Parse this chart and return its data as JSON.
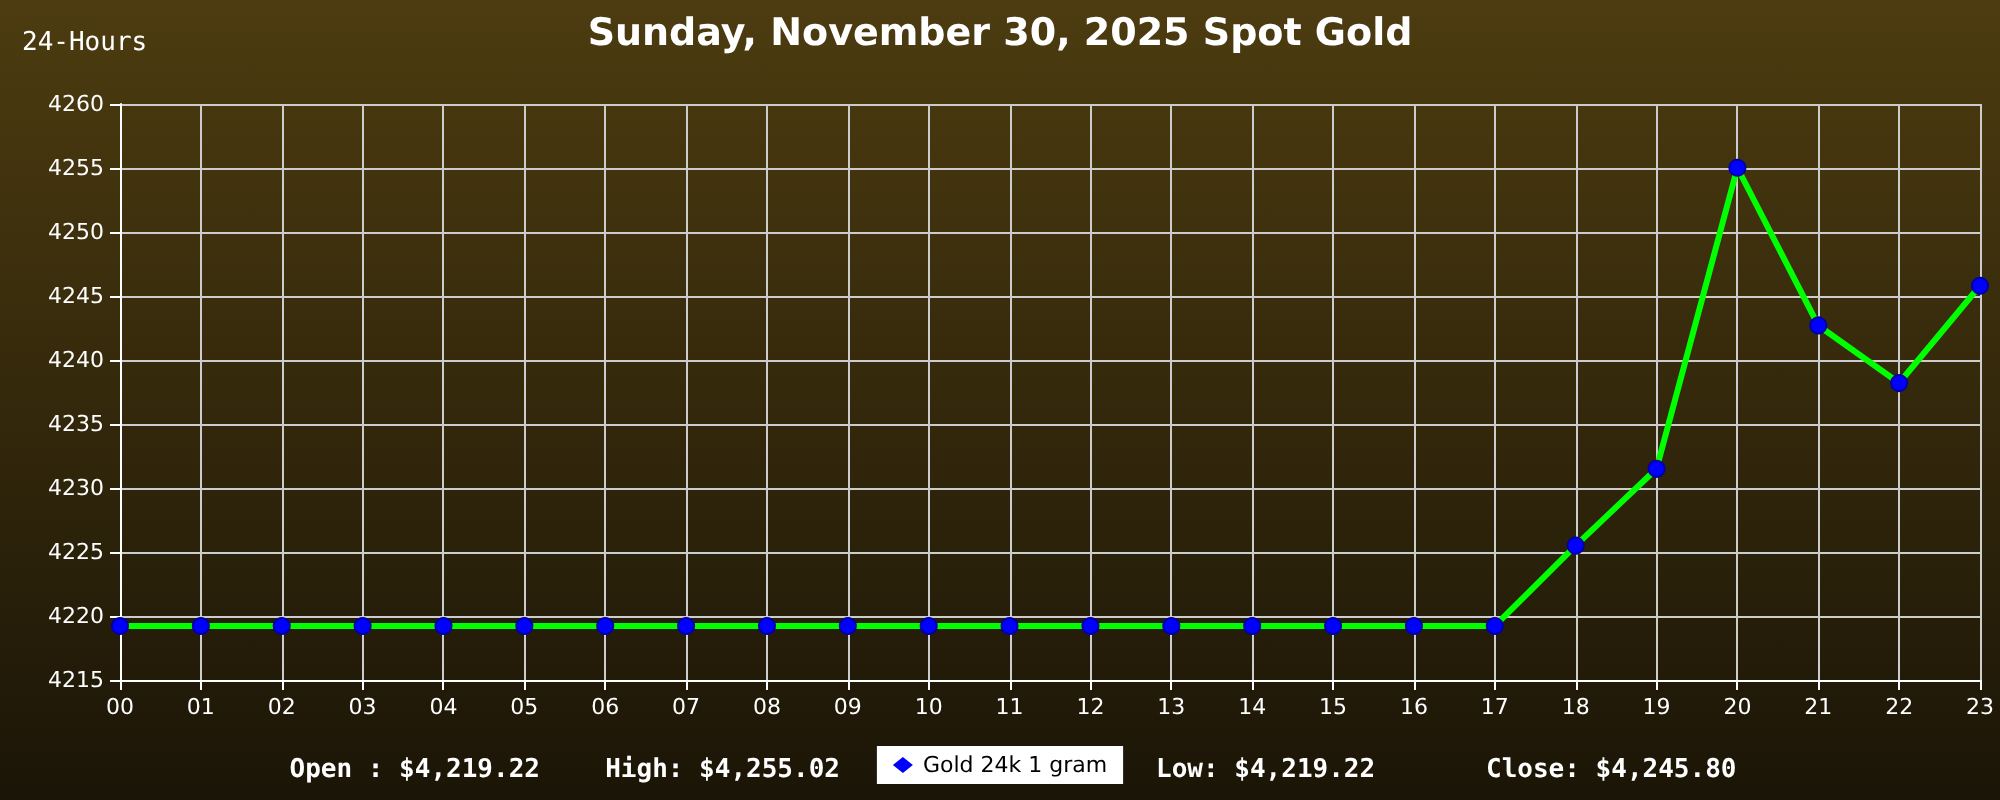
{
  "chart_data": {
    "type": "line",
    "title": "Sunday, November 30, 2025 Spot Gold",
    "subtitle": "24-Hours",
    "categories": [
      "00",
      "01",
      "02",
      "03",
      "04",
      "05",
      "06",
      "07",
      "08",
      "09",
      "10",
      "11",
      "12",
      "13",
      "14",
      "15",
      "16",
      "17",
      "18",
      "19",
      "20",
      "21",
      "22",
      "23"
    ],
    "series": [
      {
        "name": "Gold 24k 1 gram",
        "color": "#00ff00",
        "colors": [
          "#0000ff",
          "#0000ff",
          "#0000ff",
          "#0000ff",
          "#0000ff",
          "#0000ff",
          "#0000ff",
          "#0000ff",
          "#0000ff",
          "#0000ff",
          "#0000ff",
          "#0000ff",
          "#0000ff",
          "#0000ff",
          "#0000ff",
          "#0000ff",
          "#0000ff",
          "#0000ff",
          "#0000ff",
          "#0000ff",
          "#0000ff",
          "#0000ff",
          "#0000ff",
          "#0000ff"
        ],
        "values": [
          4219.22,
          4219.22,
          4219.22,
          4219.22,
          4219.22,
          4219.22,
          4219.22,
          4219.22,
          4219.22,
          4219.22,
          4219.22,
          4219.22,
          4219.22,
          4219.22,
          4219.22,
          4219.22,
          4219.22,
          4219.22,
          4225.5,
          4231.5,
          4255.02,
          4242.7,
          4238.2,
          4245.8
        ]
      }
    ],
    "ylim": [
      4215,
      4260
    ],
    "yticks": [
      4215,
      4220,
      4225,
      4230,
      4235,
      4240,
      4245,
      4250,
      4255,
      4260
    ],
    "grid": true,
    "legend": "bottom",
    "marker": "circle",
    "line_style": "solid",
    "annotations": [
      "Open : $4,219.22",
      "High: $4,255.02",
      "Low: $4,219.22",
      "Close: $4,245.80"
    ]
  }
}
